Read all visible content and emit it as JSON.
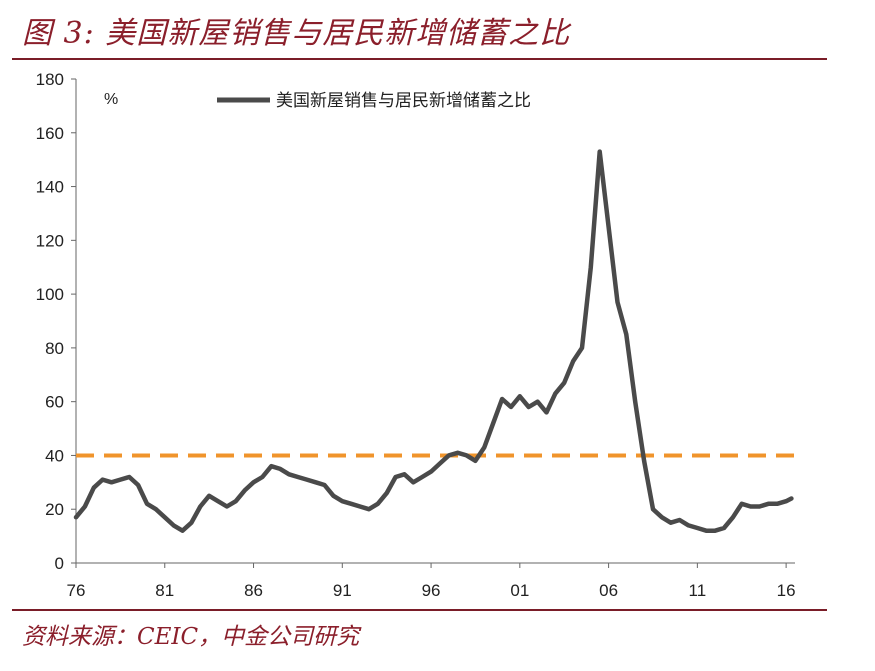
{
  "header": {
    "title": "图 3: 美国新屋销售与居民新增储蓄之比"
  },
  "footer": {
    "source": "资料来源：CEIC，中金公司研究"
  },
  "colors": {
    "title": "#8b1f2b",
    "rule": "#7a1d28",
    "series": "#4a4a4a",
    "reference": "#f0942b",
    "axis": "#666666"
  },
  "chart_data": {
    "type": "line",
    "title": "",
    "xlabel": "",
    "ylabel": "%",
    "ylim": [
      0,
      180
    ],
    "xlim": [
      1976,
      2016.5
    ],
    "grid": false,
    "legend": "top",
    "x_ticks": [
      1976,
      1981,
      1986,
      1991,
      1996,
      2001,
      2006,
      2011,
      2016
    ],
    "x_tick_labels": [
      "76",
      "81",
      "86",
      "91",
      "96",
      "01",
      "06",
      "11",
      "16"
    ],
    "y_ticks": [
      0,
      20,
      40,
      60,
      80,
      100,
      120,
      140,
      160,
      180
    ],
    "y_tick_labels": [
      "0",
      "20",
      "40",
      "60",
      "80",
      "100",
      "120",
      "140",
      "160",
      "180"
    ],
    "reference_line": {
      "y": 40,
      "style": "dashed"
    },
    "series": [
      {
        "name": "美国新屋销售与居民新增储蓄之比",
        "x": [
          1976.0,
          1976.5,
          1977.0,
          1977.5,
          1978.0,
          1978.5,
          1979.0,
          1979.5,
          1980.0,
          1980.5,
          1981.0,
          1981.5,
          1982.0,
          1982.5,
          1983.0,
          1983.5,
          1984.0,
          1984.5,
          1985.0,
          1985.5,
          1986.0,
          1986.5,
          1987.0,
          1987.5,
          1988.0,
          1988.5,
          1989.0,
          1989.5,
          1990.0,
          1990.5,
          1991.0,
          1991.5,
          1992.0,
          1992.5,
          1993.0,
          1993.5,
          1994.0,
          1994.5,
          1995.0,
          1995.5,
          1996.0,
          1996.5,
          1997.0,
          1997.5,
          1998.0,
          1998.5,
          1999.0,
          1999.5,
          2000.0,
          2000.5,
          2001.0,
          2001.5,
          2002.0,
          2002.5,
          2003.0,
          2003.5,
          2004.0,
          2004.5,
          2005.0,
          2005.5,
          2006.0,
          2006.5,
          2007.0,
          2007.5,
          2008.0,
          2008.5,
          2009.0,
          2009.5,
          2010.0,
          2010.5,
          2011.0,
          2011.5,
          2012.0,
          2012.5,
          2013.0,
          2013.5,
          2014.0,
          2014.5,
          2015.0,
          2015.5,
          2016.0,
          2016.3
        ],
        "values": [
          17,
          21,
          28,
          31,
          30,
          31,
          32,
          29,
          22,
          20,
          17,
          14,
          12,
          15,
          21,
          25,
          23,
          21,
          23,
          27,
          30,
          32,
          36,
          35,
          33,
          32,
          31,
          30,
          29,
          25,
          23,
          22,
          21,
          20,
          22,
          26,
          32,
          33,
          30,
          32,
          34,
          37,
          40,
          41,
          40,
          38,
          43,
          52,
          61,
          58,
          62,
          58,
          60,
          56,
          63,
          67,
          75,
          80,
          110,
          153,
          125,
          97,
          85,
          60,
          38,
          20,
          17,
          15,
          16,
          14,
          13,
          12,
          12,
          13,
          17,
          22,
          21,
          21,
          22,
          22,
          23,
          24
        ]
      }
    ]
  }
}
